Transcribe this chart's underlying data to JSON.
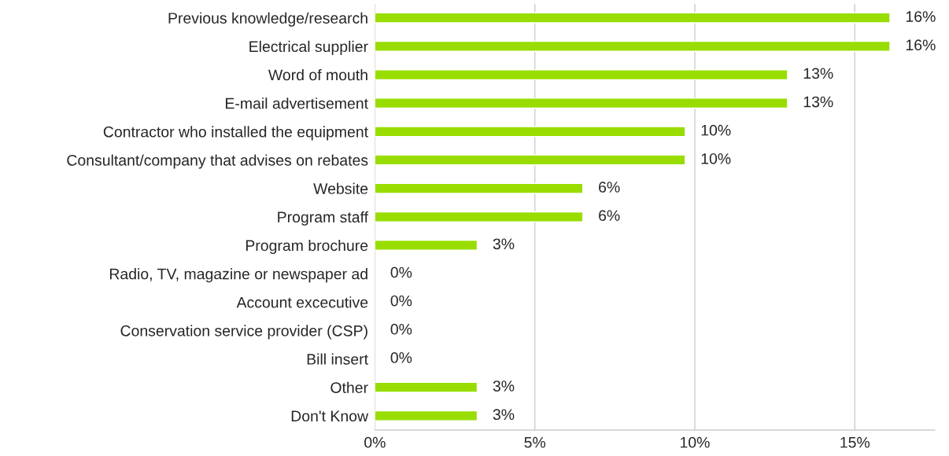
{
  "chart_data": {
    "type": "bar",
    "orientation": "horizontal",
    "categories": [
      "Previous knowledge/research",
      "Electrical supplier",
      "Word of mouth",
      "E-mail advertisement",
      "Contractor who installed the equipment",
      "Consultant/company that advises on rebates",
      "Website",
      "Program staff",
      "Program brochure",
      "Radio, TV, magazine or newspaper ad",
      "Account excecutive",
      "Conservation service provider (CSP)",
      "Bill insert",
      "Other",
      "Don't Know"
    ],
    "values": [
      16.1,
      16.1,
      12.9,
      12.9,
      9.7,
      9.7,
      6.5,
      6.5,
      3.2,
      0,
      0,
      0,
      0,
      3.2,
      3.2
    ],
    "value_labels": [
      "16%",
      "16%",
      "13%",
      "13%",
      "10%",
      "10%",
      "6%",
      "6%",
      "3%",
      "0%",
      "0%",
      "0%",
      "0%",
      "3%",
      "3%"
    ],
    "color": "#99dd00",
    "xlim": [
      0,
      17.5
    ],
    "xticks": [
      {
        "value": 0,
        "label": "0%"
      },
      {
        "value": 5,
        "label": "5%"
      },
      {
        "value": 10,
        "label": "10%"
      },
      {
        "value": 15,
        "label": "15%"
      }
    ],
    "grid": "x",
    "legend": false
  }
}
